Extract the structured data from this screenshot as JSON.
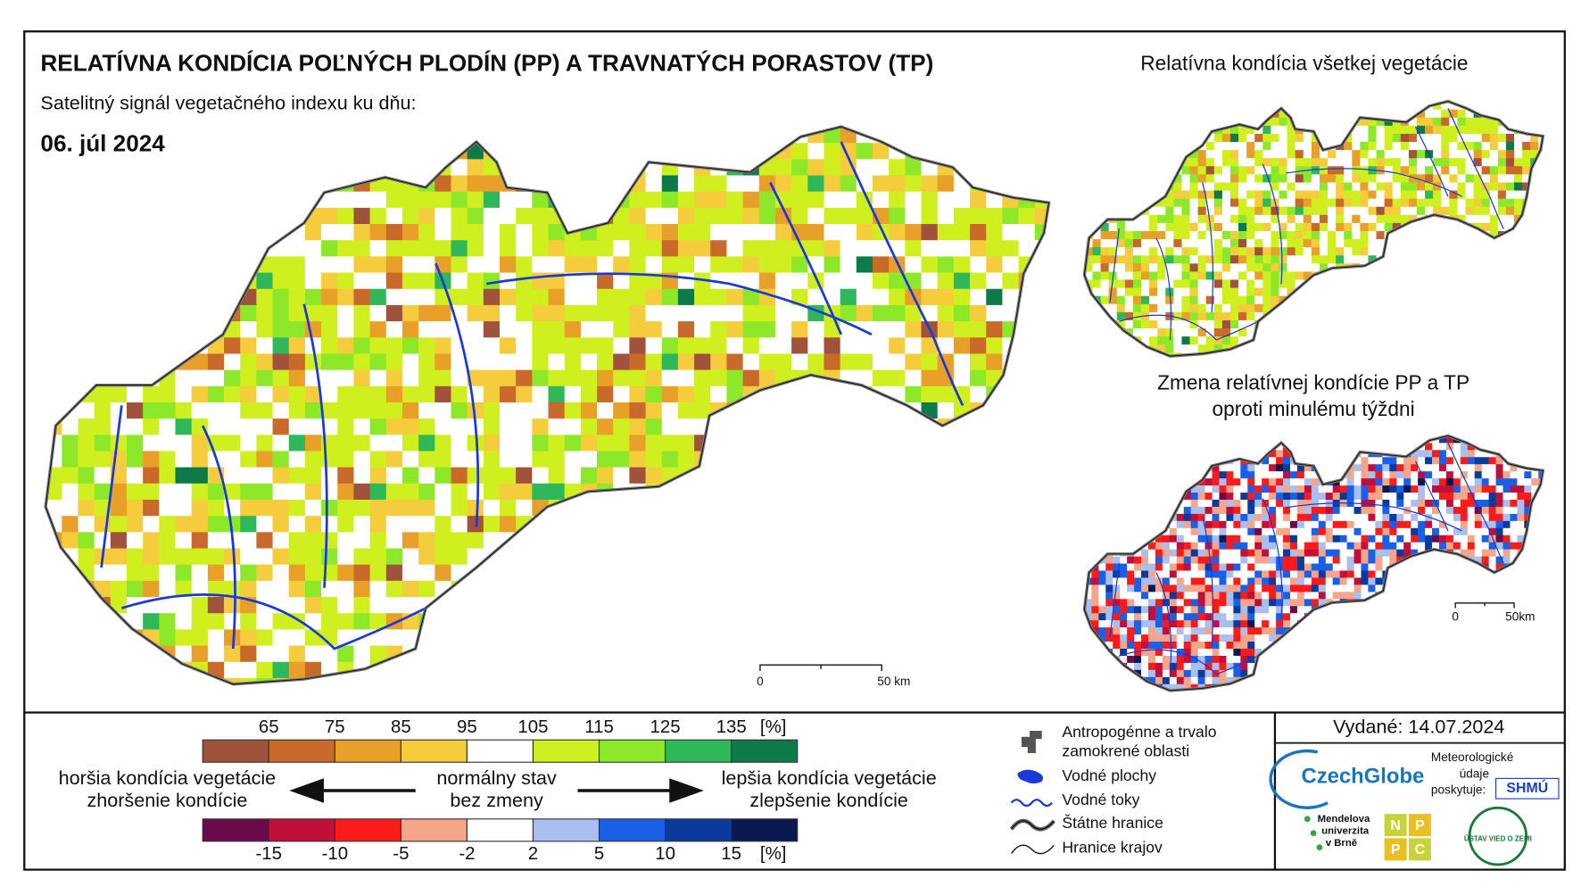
{
  "header": {
    "title": "RELATÍVNA KONDÍCIA POĽNÝCH PLODÍN (PP) A TRAVNATÝCH PORASTOV (TP)",
    "subtitle": "Satelitný signál vegetačného indexu ku dňu:",
    "date": "06. júl 2024"
  },
  "inset_maps": {
    "all_vegetation_title": "Relatívna kondícia všetkej vegetácie",
    "change_title_line1": "Zmena relatívnej kondície PP a TP",
    "change_title_line2": "oproti minulému týždni"
  },
  "scale_bars": {
    "main": {
      "start": "0",
      "end": "50 km"
    },
    "change": {
      "start": "0",
      "end": "50km"
    }
  },
  "legend": {
    "condition_scale": {
      "labels": [
        "65",
        "75",
        "85",
        "95",
        "105",
        "115",
        "125",
        "135"
      ],
      "unit": "[%]",
      "colors": [
        "#a0523a",
        "#c96a2a",
        "#e8a028",
        "#f5cd3c",
        "#ffffff",
        "#cff01e",
        "#8ee82a",
        "#2fb85a",
        "#0e7a4a"
      ]
    },
    "change_scale": {
      "labels": [
        "-15",
        "-10",
        "-5",
        "-2",
        "2",
        "5",
        "10",
        "15"
      ],
      "unit": "[%]",
      "colors": [
        "#6b0a4a",
        "#c0103a",
        "#ff1a1a",
        "#f4a58a",
        "#ffffff",
        "#a9bff0",
        "#1a5fe8",
        "#0a3a9c",
        "#0a1a50"
      ]
    },
    "worse_line1": "horšia kondícia vegetácie",
    "worse_line2": "zhoršenie kondície",
    "normal_line1": "normálny stav",
    "normal_line2": "bez zmeny",
    "better_line1": "lepšia kondícia vegetácie",
    "better_line2": "zlepšenie kondície"
  },
  "symbols": {
    "anthropogenic_line1": "Antropogénne a trvalo",
    "anthropogenic_line2": "zamokrené oblasti",
    "water_bodies": "Vodné plochy",
    "rivers": "Vodné toky",
    "state_border": "Štátne hranice",
    "region_border": "Hranice krajov"
  },
  "issued": "Vydané: 14.07.2024",
  "logos": {
    "czechglobe": "CzechGlobe",
    "meteo_line1": "Meteorologické",
    "meteo_line2": "údaje",
    "meteo_line3": "poskytuje:",
    "shmu": "SHMÚ",
    "mendel_line1": "Mendelova",
    "mendel_line2": "univerzita",
    "mendel_line3": "v Brně",
    "nppc": [
      "N",
      "P",
      "P",
      "C"
    ],
    "uvz": "ÚSTAV VIED O ZEMI"
  }
}
